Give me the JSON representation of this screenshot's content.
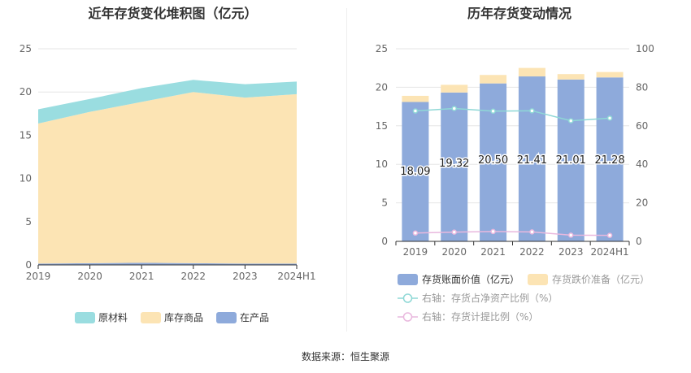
{
  "source": "数据来源：恒生聚源",
  "chart_data": [
    {
      "type": "area",
      "stacked": true,
      "title": "近年存货变化堆积图（亿元）",
      "categories": [
        "2019",
        "2020",
        "2021",
        "2022",
        "2023",
        "2024H1"
      ],
      "ylim": [
        0,
        25
      ],
      "yticks": [
        0,
        5,
        10,
        15,
        20,
        25
      ],
      "grid": true,
      "legend_position": "bottom",
      "series": [
        {
          "name": "在产品",
          "color": "#8eaadb",
          "values": [
            0.15,
            0.2,
            0.25,
            0.2,
            0.15,
            0.15
          ]
        },
        {
          "name": "库存商品",
          "color": "#fce4b4",
          "values": [
            16.2,
            17.5,
            18.6,
            19.8,
            19.2,
            19.6
          ]
        },
        {
          "name": "原材料",
          "color": "#9adde0",
          "values": [
            1.65,
            1.5,
            1.6,
            1.4,
            1.55,
            1.45
          ]
        }
      ],
      "legend_order": [
        "原材料",
        "库存商品",
        "在产品"
      ]
    },
    {
      "type": "bar",
      "title": "历年存货变动情况",
      "categories": [
        "2019",
        "2020",
        "2021",
        "2022",
        "2023",
        "2024H1"
      ],
      "ylim": [
        0,
        25
      ],
      "yticks": [
        0,
        5,
        10,
        15,
        20,
        25
      ],
      "y2lim": [
        0,
        100
      ],
      "y2ticks": [
        0,
        20,
        40,
        60,
        80,
        100
      ],
      "grid": true,
      "legend_position": "bottom",
      "series": [
        {
          "name": "存货账面价值（亿元）",
          "type": "bar",
          "stack": "inv",
          "color": "#8eaadb",
          "values": [
            18.09,
            19.32,
            20.5,
            21.41,
            21.01,
            21.28
          ],
          "labels": [
            "18.09",
            "19.32",
            "20.50",
            "21.41",
            "21.01",
            "21.28"
          ]
        },
        {
          "name": "存货跌价准备（亿元）",
          "type": "bar",
          "stack": "inv",
          "color": "#fce4b4",
          "values": [
            0.8,
            1.0,
            1.1,
            1.1,
            0.7,
            0.7
          ]
        },
        {
          "name": "右轴：存货占净资产比例（%）",
          "type": "line",
          "axis": "right",
          "color": "#8fd8d6",
          "values": [
            67.7,
            69.0,
            67.6,
            67.8,
            62.6,
            64.0
          ]
        },
        {
          "name": "右轴：存货计提比例（%）",
          "type": "line",
          "axis": "right",
          "color": "#e9b8de",
          "values": [
            4.3,
            4.8,
            5.1,
            4.9,
            3.2,
            3.1
          ]
        }
      ]
    }
  ]
}
